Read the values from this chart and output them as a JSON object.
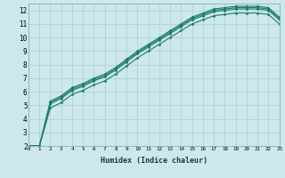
{
  "xlabel": "Humidex (Indice chaleur)",
  "ylabel": "",
  "bg_color": "#cce8ec",
  "grid_color": "#aacdd4",
  "line_color": "#1a7a6e",
  "xlim": [
    0,
    23
  ],
  "ylim": [
    2,
    12.5
  ],
  "xticks": [
    0,
    1,
    2,
    3,
    4,
    5,
    6,
    7,
    8,
    9,
    10,
    11,
    12,
    13,
    14,
    15,
    16,
    17,
    18,
    19,
    20,
    21,
    22,
    23
  ],
  "yticks": [
    2,
    3,
    4,
    5,
    6,
    7,
    8,
    9,
    10,
    11,
    12
  ],
  "lines": [
    [
      2.0,
      2.0,
      5.3,
      5.7,
      6.3,
      6.6,
      7.0,
      7.3,
      7.8,
      8.4,
      9.0,
      9.5,
      10.0,
      10.5,
      11.0,
      11.5,
      11.8,
      12.1,
      12.2,
      12.3,
      12.3,
      12.3,
      12.2,
      11.5
    ],
    [
      2.0,
      2.0,
      5.2,
      5.6,
      6.2,
      6.5,
      6.9,
      7.2,
      7.7,
      8.3,
      8.9,
      9.4,
      9.9,
      10.4,
      10.9,
      11.4,
      11.7,
      12.0,
      12.1,
      12.2,
      12.2,
      12.2,
      12.1,
      11.4
    ],
    [
      2.0,
      2.0,
      5.1,
      5.5,
      6.1,
      6.4,
      6.8,
      7.1,
      7.6,
      8.2,
      8.8,
      9.3,
      9.8,
      10.3,
      10.8,
      11.3,
      11.6,
      11.9,
      12.0,
      12.1,
      12.1,
      12.1,
      12.0,
      11.3
    ],
    [
      2.0,
      2.0,
      4.8,
      5.2,
      5.8,
      6.1,
      6.5,
      6.8,
      7.3,
      7.9,
      8.5,
      9.0,
      9.5,
      10.0,
      10.5,
      11.0,
      11.3,
      11.6,
      11.7,
      11.8,
      11.8,
      11.8,
      11.7,
      11.0
    ]
  ]
}
